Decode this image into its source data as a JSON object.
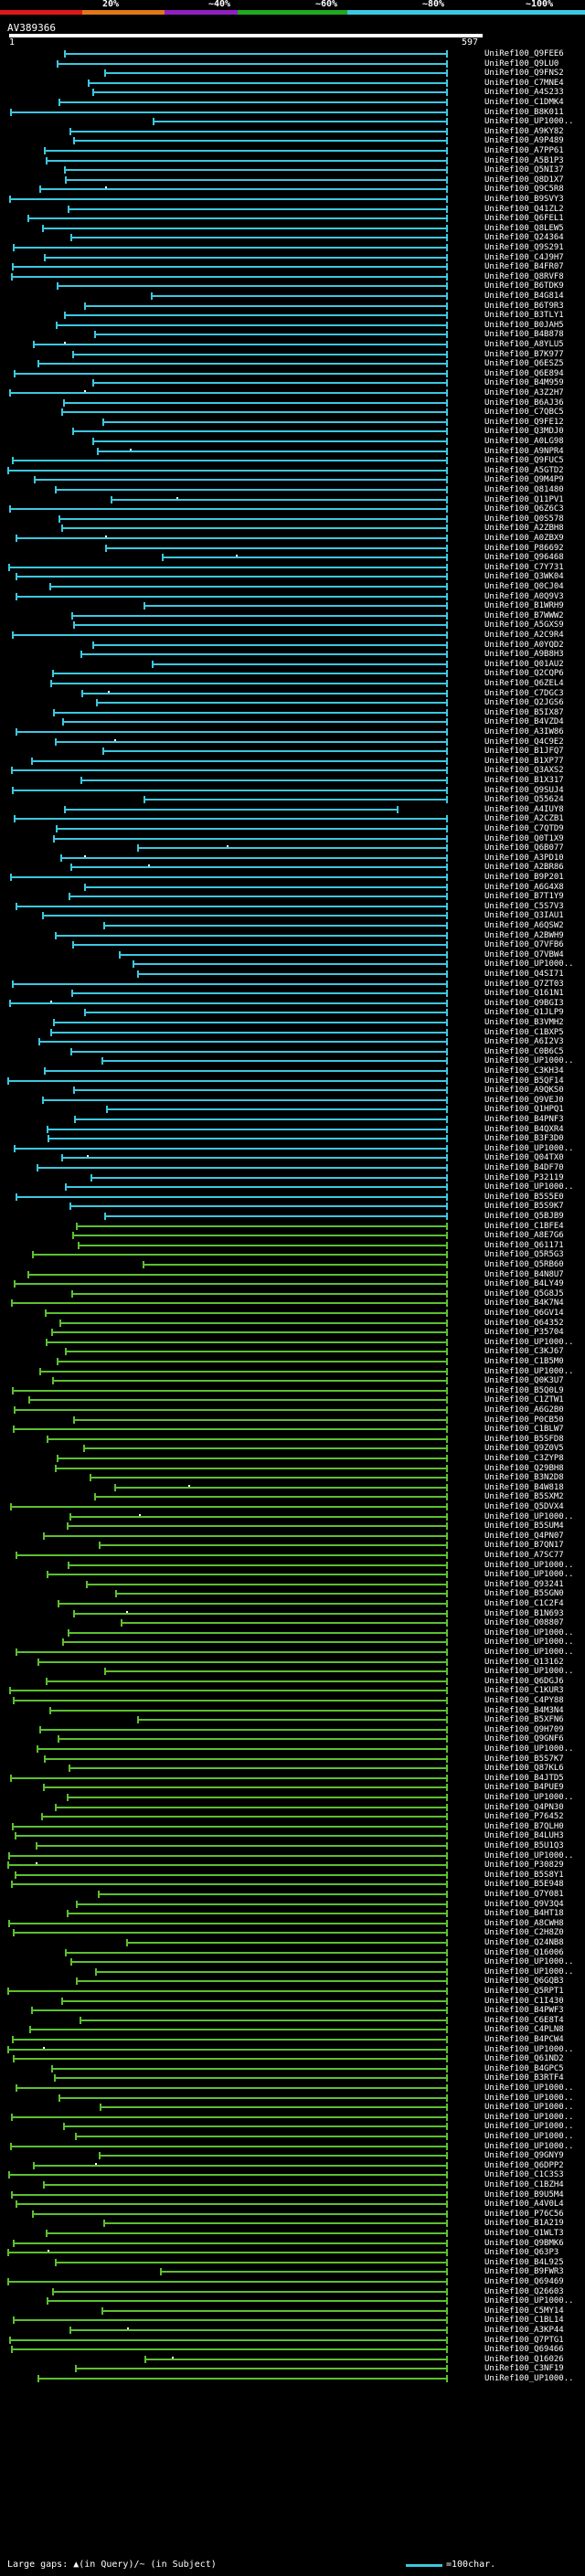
{
  "scale": {
    "labels": [
      "20%",
      "~40%",
      "~60%",
      "~80%",
      "~100%"
    ],
    "colors": {
      "red": "#e01818",
      "orange": "#e07818",
      "purple": "#9020c0",
      "green": "#20a820",
      "cyan": "#3cc8e0"
    }
  },
  "query": {
    "name": "AV389366",
    "start": "1",
    "end": "597"
  },
  "hit_colors": {
    "cyan": "#3cc8e0",
    "green": "#5cc030"
  },
  "hits": [
    "UniRef100_Q9FEE6",
    "UniRef100_Q9LU0",
    "UniRef100_Q9FNS2",
    "UniRef100_C7MNE4",
    "UniRef100_A4S233",
    "UniRef100_C1DMK4",
    "UniRef100_B8K011",
    "UniRef100_UP1000..",
    "UniRef100_A9KY82",
    "UniRef100_A9P489",
    "UniRef100_A7PP61",
    "UniRef100_A5B1P3",
    "UniRef100_Q5NI37",
    "UniRef100_Q8D1X7",
    "UniRef100_Q9C5R8",
    "UniRef100_B9SVY3",
    "UniRef100_Q41ZL2",
    "UniRef100_Q6FEL1",
    "UniRef100_Q8LEW5",
    "UniRef100_Q24364",
    "UniRef100_Q9S291",
    "UniRef100_C4J9H7",
    "UniRef100_B4FR07",
    "UniRef100_Q8RVF8",
    "UniRef100_B6TDK9",
    "UniRef100_B4G814",
    "UniRef100_B6T9R3",
    "UniRef100_B3TLY1",
    "UniRef100_B0JAH5",
    "UniRef100_B4B878",
    "UniRef100_A8YLU5",
    "UniRef100_B7K977",
    "UniRef100_Q6ESZ5",
    "UniRef100_Q6E894",
    "UniRef100_B4M959",
    "UniRef100_A3Z2H7",
    "UniRef100_B6AJ36",
    "UniRef100_C7QBC5",
    "UniRef100_Q9FE12",
    "UniRef100_Q3MDJ0",
    "UniRef100_A0LG98",
    "UniRef100_A9NPR4",
    "UniRef100_Q9FUC5",
    "UniRef100_A5GTD2",
    "UniRef100_Q9M4P9",
    "UniRef100_Q81480",
    "UniRef100_Q11PV1",
    "UniRef100_Q6Z6C3",
    "UniRef100_Q0S578",
    "UniRef100_A2ZBH8",
    "UniRef100_A0ZBX9",
    "UniRef100_P86692",
    "UniRef100_Q96468",
    "UniRef100_C7Y731",
    "UniRef100_Q3WK04",
    "UniRef100_Q0CJ04",
    "UniRef100_A0Q9V3",
    "UniRef100_B1WRH9",
    "UniRef100_B7WWW2",
    "UniRef100_A5GXS9",
    "UniRef100_A2C9R4",
    "UniRef100_A0YQD2",
    "UniRef100_A9B8H3",
    "UniRef100_Q01AU2",
    "UniRef100_Q2CQP6",
    "UniRef100_Q6ZEL4",
    "UniRef100_C7DGC3",
    "UniRef100_Q2JGS6",
    "UniRef100_B5IX87",
    "UniRef100_B4VZD4",
    "UniRef100_A3IW86",
    "UniRef100_Q4C9E2",
    "UniRef100_B1JFQ7",
    "UniRef100_B1XP77",
    "UniRef100_Q3AXS2",
    "UniRef100_B1X317",
    "UniRef100_Q9SUJ4",
    "UniRef100_Q55624",
    "UniRef100_A4IUY8",
    "UniRef100_A2CZB1",
    "UniRef100_C7QTD9",
    "UniRef100_Q0T1X9",
    "UniRef100_Q6B077",
    "UniRef100_A3PD10",
    "UniRef100_A2BR86",
    "UniRef100_B9P201",
    "UniRef100_A6G4X8",
    "UniRef100_B7T1Y9",
    "UniRef100_C5S7V3",
    "UniRef100_Q3IAU1",
    "UniRef100_A6QSW2",
    "UniRef100_A2BWH9",
    "UniRef100_Q7VFB6",
    "UniRef100_Q7VBW4",
    "UniRef100_UP1000..",
    "UniRef100_Q4SI71",
    "UniRef100_Q7ZT03",
    "UniRef100_Q161N1",
    "UniRef100_Q9BGI3",
    "UniRef100_Q1JLP9",
    "UniRef100_B3VMH2",
    "UniRef100_C1BXP5",
    "UniRef100_A6I2V3",
    "UniRef100_C0B6C5",
    "UniRef100_UP1000..",
    "UniRef100_C3KH34",
    "UniRef100_B5QF14",
    "UniRef100_A9QKS0",
    "UniRef100_Q9VEJ0",
    "UniRef100_Q1HPQ1",
    "UniRef100_B4PNF3",
    "UniRef100_B4QXR4",
    "UniRef100_B3F3D0",
    "UniRef100_UP1000..",
    "UniRef100_Q04TX0",
    "UniRef100_B4DF70",
    "UniRef100_P32119",
    "UniRef100_UP1000..",
    "UniRef100_B5S5E0",
    "UniRef100_B5S9K7",
    "UniRef100_Q5BJB9",
    "UniRef100_C1BFE4",
    "UniRef100_A8E7G6",
    "UniRef100_Q61171",
    "UniRef100_Q5R5G3",
    "UniRef100_Q5RB60",
    "UniRef100_B4N8U7",
    "UniRef100_B4LY49",
    "UniRef100_Q5G8J5",
    "UniRef100_B4K7N4",
    "UniRef100_Q6GV14",
    "UniRef100_Q64352",
    "UniRef100_P35704",
    "UniRef100_UP1000..",
    "UniRef100_C3KJ67",
    "UniRef100_C1B5M0",
    "UniRef100_UP1000..",
    "UniRef100_Q0K3U7",
    "UniRef100_B5Q0L9",
    "UniRef100_C1ZTW1",
    "UniRef100_A6G2B0",
    "UniRef100_P0CB50",
    "UniRef100_C1BLW7",
    "UniRef100_B5SFD8",
    "UniRef100_Q9Z0V5",
    "UniRef100_C3ZYP8",
    "UniRef100_Q29BH8",
    "UniRef100_B3N2D8",
    "UniRef100_B4W818",
    "UniRef100_B5SXM2",
    "UniRef100_Q5DVX4",
    "UniRef100_UP1000..",
    "UniRef100_B5SUM4",
    "UniRef100_Q4PN07",
    "UniRef100_B7QN17",
    "UniRef100_A7SC77",
    "UniRef100_UP1000..",
    "UniRef100_UP1000..",
    "UniRef100_Q93241",
    "UniRef100_B5SGN0",
    "UniRef100_C1C2F4",
    "UniRef100_B1N693",
    "UniRef100_Q08807",
    "UniRef100_UP1000..",
    "UniRef100_UP1000..",
    "UniRef100_UP1000..",
    "UniRef100_Q13162",
    "UniRef100_UP1000..",
    "UniRef100_Q6DGJ6",
    "UniRef100_C1KUR3",
    "UniRef100_C4PY88",
    "UniRef100_B4M3N4",
    "UniRef100_B5XFN6",
    "UniRef100_Q9H709",
    "UniRef100_Q9GNF6",
    "UniRef100_UP1000..",
    "UniRef100_B5S7K7",
    "UniRef100_Q87KL6",
    "UniRef100_B4JTD5",
    "UniRef100_B4PUE9",
    "UniRef100_UP1000..",
    "UniRef100_Q4PN30",
    "UniRef100_P76452",
    "UniRef100_B7QLH0",
    "UniRef100_B4LUH3",
    "UniRef100_B5U1Q3",
    "UniRef100_UP1000..",
    "UniRef100_P30829",
    "UniRef100_B5S8Y1",
    "UniRef100_B5E948",
    "UniRef100_Q7Y081",
    "UniRef100_Q9V3Q4",
    "UniRef100_B4HT18",
    "UniRef100_A8CWH8",
    "UniRef100_C2H8Z0",
    "UniRef100_Q24NB8",
    "UniRef100_Q16006",
    "UniRef100_UP1000..",
    "UniRef100_UP1000..",
    "UniRef100_Q6GQB3",
    "UniRef100_Q5RPT1",
    "UniRef100_C1I430",
    "UniRef100_B4PWF3",
    "UniRef100_C6E8T4",
    "UniRef100_C4PLN8",
    "UniRef100_B4PCW4",
    "UniRef100_UP1000..",
    "UniRef100_Q61ND2",
    "UniRef100_B4GPC5",
    "UniRef100_B3RTF4",
    "UniRef100_UP1000..",
    "UniRef100_UP1000..",
    "UniRef100_UP1000..",
    "UniRef100_UP1000..",
    "UniRef100_UP1000..",
    "UniRef100_UP1000..",
    "UniRef100_UP1000..",
    "UniRef100_Q9GNY9",
    "UniRef100_Q6DPP2",
    "UniRef100_C1C3S3",
    "UniRef100_C1BZH4",
    "UniRef100_B9U5M4",
    "UniRef100_A4V0L4",
    "UniRef100_P76C56",
    "UniRef100_B1A219",
    "UniRef100_Q1WLT3",
    "UniRef100_Q9BMK6",
    "UniRef100_Q63P3",
    "UniRef100_B4L925",
    "UniRef100_B9FWR3",
    "UniRef100_Q69469",
    "UniRef100_Q26603",
    "UniRef100_UP1000..",
    "UniRef100_C5MY14",
    "UniRef100_C1BL14",
    "UniRef100_A3KP44",
    "UniRef100_Q7PTG1",
    "UniRef100_Q69466",
    "UniRef100_Q16026",
    "UniRef100_C3NF19",
    "UniRef100_UP1000.."
  ],
  "legend": {
    "gaps_text": "Large gaps: ▲(in Query)/~ (in Subject)",
    "scale_text": "=100char."
  }
}
